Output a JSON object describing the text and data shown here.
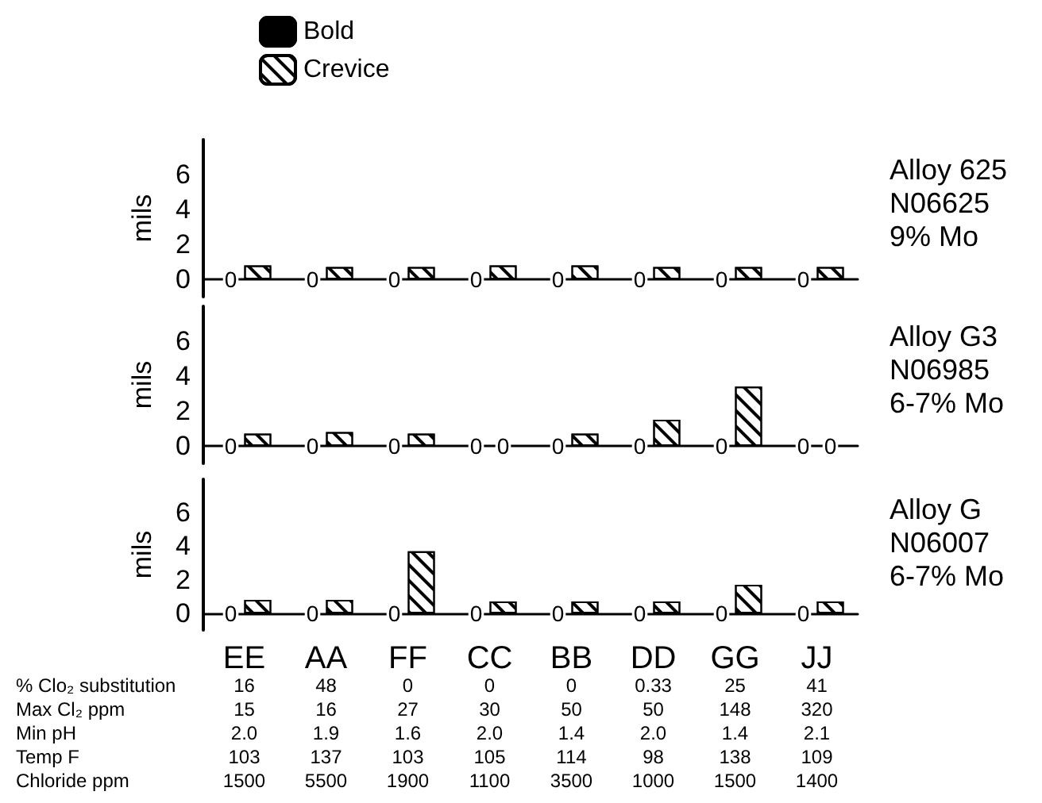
{
  "chart_data": [
    {
      "type": "bar",
      "ylabel": "mils",
      "ylim": [
        -1,
        8
      ],
      "yticks": [
        0,
        2,
        4,
        6
      ],
      "legend": "top left",
      "tick_labels": "y",
      "annotations": [
        "Alloy 625",
        "N06625",
        "9% Mo"
      ],
      "series": [
        {
          "name": "Bold",
          "color": "#000000",
          "values": [
            0,
            0,
            0,
            0,
            0,
            0,
            0,
            0
          ],
          "value_labels": [
            "0",
            "0",
            "0",
            "0",
            "0",
            "0",
            "0",
            "0"
          ]
        },
        {
          "name": "Crevice",
          "color": "#ffffff",
          "values": [
            0.8,
            0.7,
            0.7,
            0.8,
            0.8,
            0.7,
            0.7,
            0.7
          ],
          "value_labels": [
            null,
            null,
            null,
            null,
            null,
            null,
            null,
            null
          ]
        }
      ]
    },
    {
      "type": "bar",
      "ylabel": "mils",
      "ylim": [
        -1,
        8
      ],
      "yticks": [
        0,
        2,
        4,
        6
      ],
      "tick_labels": "y",
      "annotations": [
        "Alloy G3",
        "N06985",
        "6-7% Mo"
      ],
      "series": [
        {
          "color": "#000000",
          "values": [
            0,
            0,
            0,
            0,
            0,
            0,
            0,
            0
          ],
          "value_labels": [
            "0",
            "0",
            "0",
            "0",
            "0",
            "0",
            "0",
            "0"
          ]
        },
        {
          "color": "#ffffff",
          "values": [
            0.7,
            0.8,
            0.7,
            0,
            0.7,
            1.5,
            3.4,
            0
          ],
          "value_labels": [
            null,
            null,
            null,
            "0",
            null,
            null,
            null,
            "0"
          ]
        }
      ]
    },
    {
      "type": "bar",
      "ylabel": "mils",
      "categories": [
        "EE",
        "AA",
        "FF",
        "CC",
        "BB",
        "DD",
        "GG",
        "JJ"
      ],
      "ylim": [
        -1,
        8
      ],
      "yticks": [
        0,
        2,
        4,
        6
      ],
      "annotations": [
        "Alloy G",
        "N06007",
        "6-7% Mo"
      ],
      "series": [
        {
          "color": "#000000",
          "values": [
            0,
            0,
            0,
            0,
            0,
            0,
            0,
            0
          ],
          "value_labels": [
            "0",
            "0",
            "0",
            "0",
            "0",
            "0",
            "0",
            "0"
          ]
        },
        {
          "color": "#ffffff",
          "values": [
            0.8,
            0.8,
            3.7,
            0.7,
            0.7,
            0.7,
            1.7,
            0.7
          ],
          "value_labels": [
            null,
            null,
            null,
            null,
            null,
            null,
            null,
            null
          ]
        }
      ]
    },
    {
      "type": "other",
      "y_categories": [
        "% Clo₂ substitution",
        "Max Cl₂ ppm",
        "Min pH",
        "Temp F",
        "Chloride ppm"
      ],
      "cell_labels": [
        [
          "16",
          "48",
          "0",
          "0",
          "0",
          "0.33",
          "25",
          "41"
        ],
        [
          "15",
          "16",
          "27",
          "30",
          "50",
          "50",
          "148",
          "320"
        ],
        [
          "2.0",
          "1.9",
          "1.6",
          "2.0",
          "1.4",
          "2.0",
          "1.4",
          "2.1"
        ],
        [
          "103",
          "137",
          "103",
          "105",
          "114",
          "98",
          "138",
          "109"
        ],
        [
          "1500",
          "5500",
          "1900",
          "1100",
          "3500",
          "1000",
          "1500",
          "1400"
        ]
      ]
    }
  ]
}
